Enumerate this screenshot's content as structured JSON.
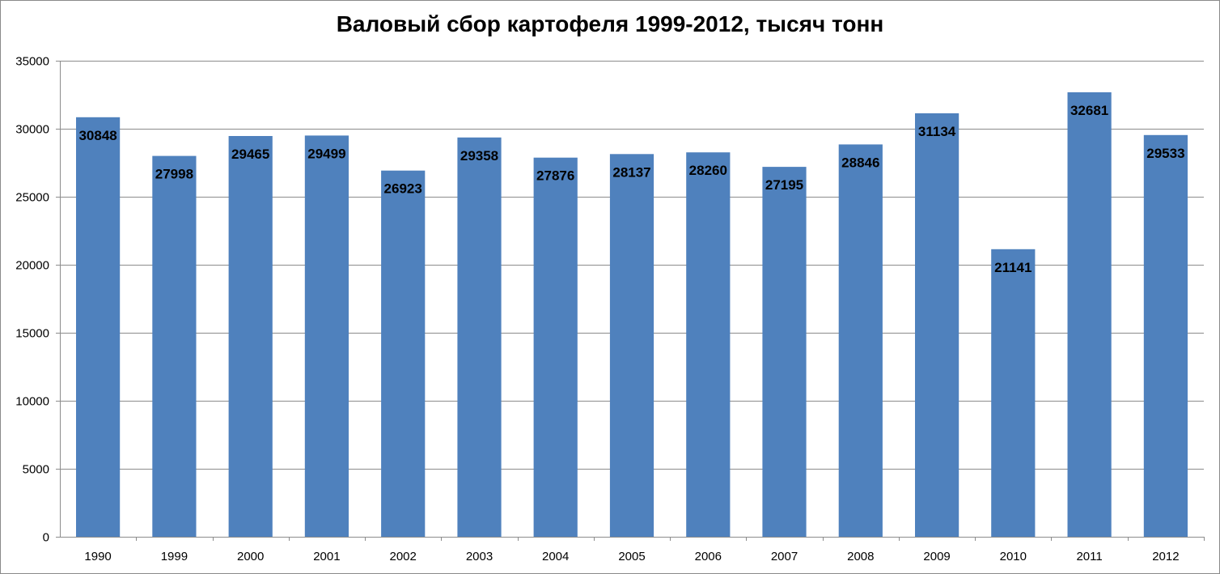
{
  "chart_data": {
    "type": "bar",
    "title": "Валовый сбор картофеля 1999-2012, тысяч тонн",
    "categories": [
      "1990",
      "1999",
      "2000",
      "2001",
      "2002",
      "2003",
      "2004",
      "2005",
      "2006",
      "2007",
      "2008",
      "2009",
      "2010",
      "2011",
      "2012"
    ],
    "values": [
      30848,
      27998,
      29465,
      29499,
      26923,
      29358,
      27876,
      28137,
      28260,
      27195,
      28846,
      31134,
      21141,
      32681,
      29533
    ],
    "ylim": [
      0,
      35000
    ],
    "yticks": [
      0,
      5000,
      10000,
      15000,
      20000,
      25000,
      30000,
      35000
    ],
    "grid": true,
    "legend": "none",
    "bar_color": "#4f81bd",
    "grid_color": "#8c8c8c",
    "data_labels": true
  }
}
